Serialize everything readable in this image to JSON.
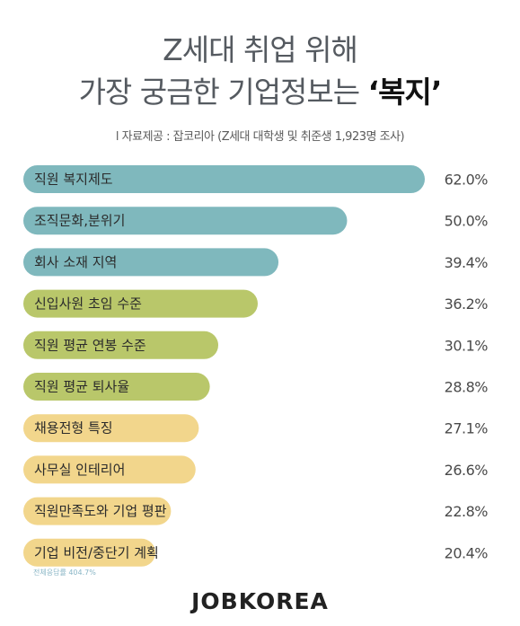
{
  "title": {
    "line1": "Z세대 취업 위해",
    "line2_prefix": "가장 궁금한 기업정보는 ",
    "line2_highlight": "‘복지’"
  },
  "source": "l 자료제공 : 잡코리아 (Z세대 대학생 및 취준생 1,923명 조사)",
  "chart_data": {
    "type": "bar",
    "orientation": "horizontal",
    "categories": [
      "직원 복지제도",
      "조직문화,분위기",
      "회사 소재 지역",
      "신입사원 초임 수준",
      "직원 평균 연봉 수준",
      "직원 평균 퇴사율",
      "채용전형 특징",
      "사무실 인테리어",
      "직원만족도와 기업 평판",
      "기업 비전/중단기 계획"
    ],
    "values": [
      62.0,
      50.0,
      39.4,
      36.2,
      30.1,
      28.8,
      27.1,
      26.6,
      22.8,
      20.4
    ],
    "value_labels": [
      "62.0%",
      "50.0%",
      "39.4%",
      "36.2%",
      "30.1%",
      "28.8%",
      "27.1%",
      "26.6%",
      "22.8%",
      "20.4%"
    ],
    "bar_colors": [
      "#7fb8bd",
      "#7fb8bd",
      "#7fb8bd",
      "#b9c76a",
      "#b9c76a",
      "#b9c76a",
      "#f2d68c",
      "#f2d68c",
      "#f2d68c",
      "#f2d68c"
    ],
    "xlim": [
      0,
      62.0
    ],
    "grid": false
  },
  "footnote": "전체응답률 404.7%",
  "brand": "JOBKOREA"
}
